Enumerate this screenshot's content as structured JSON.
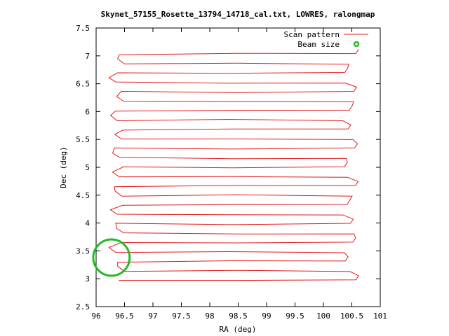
{
  "chart_data": {
    "type": "line",
    "title": "Skynet_57155_Rosette_13794_14718_cal.txt, LOWRES, ralongmap",
    "xlabel": "RA (deg)",
    "ylabel": "Dec (deg)",
    "xlim": [
      96,
      101
    ],
    "ylim": [
      2.5,
      7.5
    ],
    "xticks": [
      "96",
      "96.5",
      "97",
      "97.5",
      "98",
      "98.5",
      "99",
      "99.5",
      "100",
      "100.5",
      "101"
    ],
    "yticks": [
      "2.5",
      "3",
      "3.5",
      "4",
      "4.5",
      "5",
      "5.5",
      "6",
      "6.5",
      "7",
      "7.5"
    ],
    "grid": false,
    "legend_position": "top-right",
    "series": [
      {
        "name": "Scan pattern",
        "color": "#e41a1c",
        "scan_rows": {
          "dec_start": 2.97,
          "dec_end": 7.03,
          "row_count": 25,
          "ra_west_min": 96.22,
          "ra_west_max": 96.38,
          "ra_east_min": 100.42,
          "ra_east_max": 100.62
        }
      },
      {
        "name": "Beam size",
        "color": "#22bb22",
        "shape": "circle",
        "center_ra": 96.27,
        "center_dec": 3.38,
        "radius_deg": 0.32
      }
    ]
  }
}
